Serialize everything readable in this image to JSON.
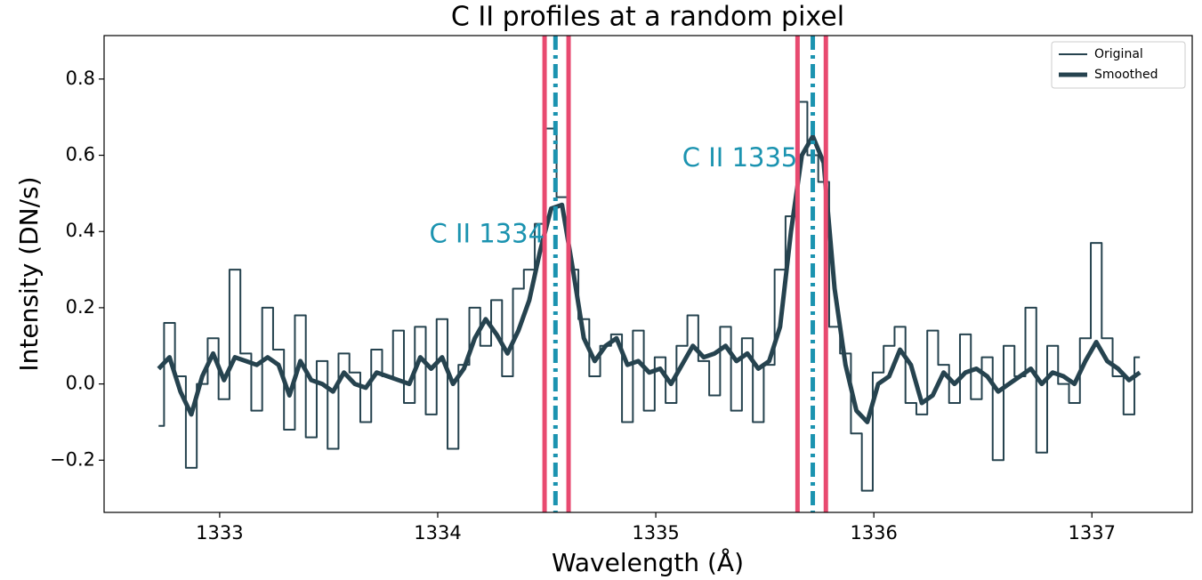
{
  "chart_data": {
    "type": "line",
    "title": "C II profiles at a random pixel",
    "xlabel": "Wavelength (Å)",
    "ylabel": "Intensity (DN/s)",
    "x": [
      1332.72,
      1332.77,
      1332.82,
      1332.87,
      1332.92,
      1332.97,
      1333.02,
      1333.07,
      1333.12,
      1333.17,
      1333.22,
      1333.27,
      1333.32,
      1333.37,
      1333.42,
      1333.47,
      1333.52,
      1333.57,
      1333.62,
      1333.67,
      1333.72,
      1333.77,
      1333.82,
      1333.87,
      1333.92,
      1333.97,
      1334.02,
      1334.07,
      1334.12,
      1334.17,
      1334.22,
      1334.27,
      1334.32,
      1334.37,
      1334.42,
      1334.47,
      1334.52,
      1334.57,
      1334.62,
      1334.67,
      1334.72,
      1334.77,
      1334.82,
      1334.87,
      1334.92,
      1334.97,
      1335.02,
      1335.07,
      1335.12,
      1335.17,
      1335.22,
      1335.27,
      1335.32,
      1335.37,
      1335.42,
      1335.47,
      1335.52,
      1335.57,
      1335.62,
      1335.67,
      1335.72,
      1335.77,
      1335.82,
      1335.87,
      1335.92,
      1335.97,
      1336.02,
      1336.07,
      1336.12,
      1336.17,
      1336.22,
      1336.27,
      1336.32,
      1336.37,
      1336.42,
      1336.47,
      1336.52,
      1336.57,
      1336.62,
      1336.67,
      1336.72,
      1336.77,
      1336.82,
      1336.87,
      1336.92,
      1336.97,
      1337.02,
      1337.07,
      1337.12,
      1337.17,
      1337.22
    ],
    "series": [
      {
        "name": "Original",
        "color": "#26434f",
        "width": 2,
        "step": true,
        "values": [
          -0.11,
          0.16,
          0.02,
          -0.22,
          0.0,
          0.12,
          -0.04,
          0.3,
          0.08,
          -0.07,
          0.2,
          0.09,
          -0.12,
          0.18,
          -0.14,
          0.06,
          -0.17,
          0.08,
          0.03,
          -0.1,
          0.09,
          0.02,
          0.14,
          -0.05,
          0.15,
          -0.08,
          0.17,
          -0.17,
          0.05,
          0.2,
          0.1,
          0.22,
          0.02,
          0.25,
          0.3,
          0.42,
          0.67,
          0.49,
          0.3,
          0.17,
          0.02,
          0.1,
          0.13,
          -0.1,
          0.14,
          -0.07,
          0.07,
          -0.05,
          0.1,
          0.18,
          0.06,
          -0.03,
          0.15,
          -0.07,
          0.12,
          -0.1,
          0.05,
          0.3,
          0.44,
          0.74,
          0.6,
          0.53,
          0.15,
          0.08,
          -0.13,
          -0.28,
          0.03,
          0.1,
          0.15,
          -0.05,
          -0.08,
          0.14,
          0.05,
          -0.05,
          0.13,
          -0.04,
          0.07,
          -0.2,
          0.1,
          0.02,
          0.2,
          -0.18,
          0.1,
          0.0,
          -0.05,
          0.12,
          0.37,
          0.12,
          0.02,
          -0.08,
          0.07
        ]
      },
      {
        "name": "Smoothed",
        "color": "#26434f",
        "width": 5,
        "step": false,
        "values": [
          0.04,
          0.07,
          -0.02,
          -0.08,
          0.02,
          0.08,
          0.01,
          0.07,
          0.06,
          0.05,
          0.07,
          0.05,
          -0.03,
          0.06,
          0.01,
          0.0,
          -0.02,
          0.03,
          0.0,
          -0.01,
          0.03,
          0.02,
          0.01,
          0.0,
          0.07,
          0.04,
          0.07,
          0.0,
          0.04,
          0.12,
          0.17,
          0.13,
          0.08,
          0.14,
          0.22,
          0.35,
          0.46,
          0.47,
          0.3,
          0.12,
          0.06,
          0.1,
          0.12,
          0.05,
          0.06,
          0.03,
          0.04,
          0.0,
          0.05,
          0.1,
          0.07,
          0.08,
          0.1,
          0.06,
          0.08,
          0.04,
          0.06,
          0.15,
          0.4,
          0.6,
          0.65,
          0.58,
          0.25,
          0.05,
          -0.07,
          -0.1,
          0.0,
          0.02,
          0.09,
          0.05,
          -0.05,
          -0.03,
          0.03,
          0.0,
          0.03,
          0.04,
          0.02,
          -0.02,
          0.0,
          0.02,
          0.04,
          0.0,
          0.03,
          0.02,
          0.0,
          0.06,
          0.11,
          0.06,
          0.04,
          0.01,
          0.03
        ]
      }
    ],
    "vlines": [
      {
        "x": 1334.49,
        "color": "#e84a70",
        "style": "solid"
      },
      {
        "x": 1334.6,
        "color": "#e84a70",
        "style": "solid"
      },
      {
        "x": 1334.54,
        "color": "#1b93b0",
        "style": "dashdot"
      },
      {
        "x": 1335.65,
        "color": "#e84a70",
        "style": "solid"
      },
      {
        "x": 1335.78,
        "color": "#e84a70",
        "style": "solid"
      },
      {
        "x": 1335.72,
        "color": "#1b93b0",
        "style": "dashdot"
      }
    ],
    "annotations": [
      {
        "text": "C II 1334",
        "x": 1334.49,
        "y": 0.39,
        "color": "#1b93b0"
      },
      {
        "text": "C II 1335",
        "x": 1335.65,
        "y": 0.59,
        "color": "#1b93b0"
      }
    ],
    "xlim": [
      1332.47,
      1337.46
    ],
    "ylim": [
      -0.337,
      0.914
    ],
    "xticks": [
      1333,
      1334,
      1335,
      1336,
      1337
    ],
    "yticks": [
      {
        "value": -0.2,
        "label": "−0.2"
      },
      {
        "value": 0,
        "label": "0.0"
      },
      {
        "value": 0.2,
        "label": "0.2"
      },
      {
        "value": 0.4,
        "label": "0.4"
      },
      {
        "value": 0.6,
        "label": "0.6"
      },
      {
        "value": 0.8,
        "label": "0.8"
      }
    ],
    "legend": "upper right"
  }
}
